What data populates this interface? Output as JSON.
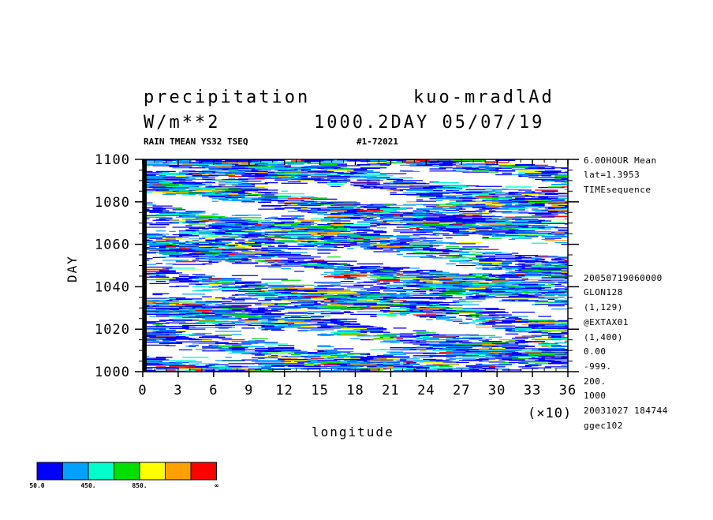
{
  "header": {
    "field_name": "precipitation",
    "run_name": "kuo-mradlAd",
    "units": "W/m**2",
    "time_info": "1000.2DAY 05/07/19",
    "subtitle_left": "RAIN TMEAN YS32 TSEQ",
    "subtitle_right": "#1-72021"
  },
  "side_info_top": [
    "6.00HOUR Mean",
    "lat=1.3953",
    "TIMEsequence"
  ],
  "side_info_bottom": [
    "20050719060000",
    "GLON128",
    "(1,129)",
    "@EXTAX01",
    "(1,400)",
    "0.00",
    "-999.",
    "200.",
    "1000",
    "20031027 184744",
    "ggec102"
  ],
  "chart_data": {
    "type": "heatmap",
    "xlabel": "longitude",
    "xscale_note": "(×10)",
    "ylabel": "DAY",
    "xlim": [
      0,
      36
    ],
    "ylim": [
      1000,
      1100
    ],
    "x_ticks": [
      "0",
      "3",
      "6",
      "9",
      "12",
      "15",
      "18",
      "21",
      "24",
      "27",
      "30",
      "33",
      "36"
    ],
    "y_ticks": [
      "1000",
      "1020",
      "1040",
      "1060",
      "1080",
      "1100"
    ],
    "x_tick_values": [
      0,
      3,
      6,
      9,
      12,
      15,
      18,
      21,
      24,
      27,
      30,
      33,
      36
    ],
    "y_tick_values": [
      1000,
      1020,
      1040,
      1060,
      1080,
      1100
    ],
    "colorbar": {
      "colors": [
        "#0000ff",
        "#00a0ff",
        "#00ffc8",
        "#00e000",
        "#ffff00",
        "#ffa000",
        "#ff0000"
      ],
      "labels": [
        "50.0",
        "450.",
        "850.",
        "∞"
      ],
      "label_positions": [
        0,
        2,
        4,
        7
      ]
    },
    "pattern": {
      "description": "time-longitude precipitation; scattered eastward-propagating streaks",
      "grid": [
        129,
        400
      ],
      "seed": 72021
    }
  }
}
